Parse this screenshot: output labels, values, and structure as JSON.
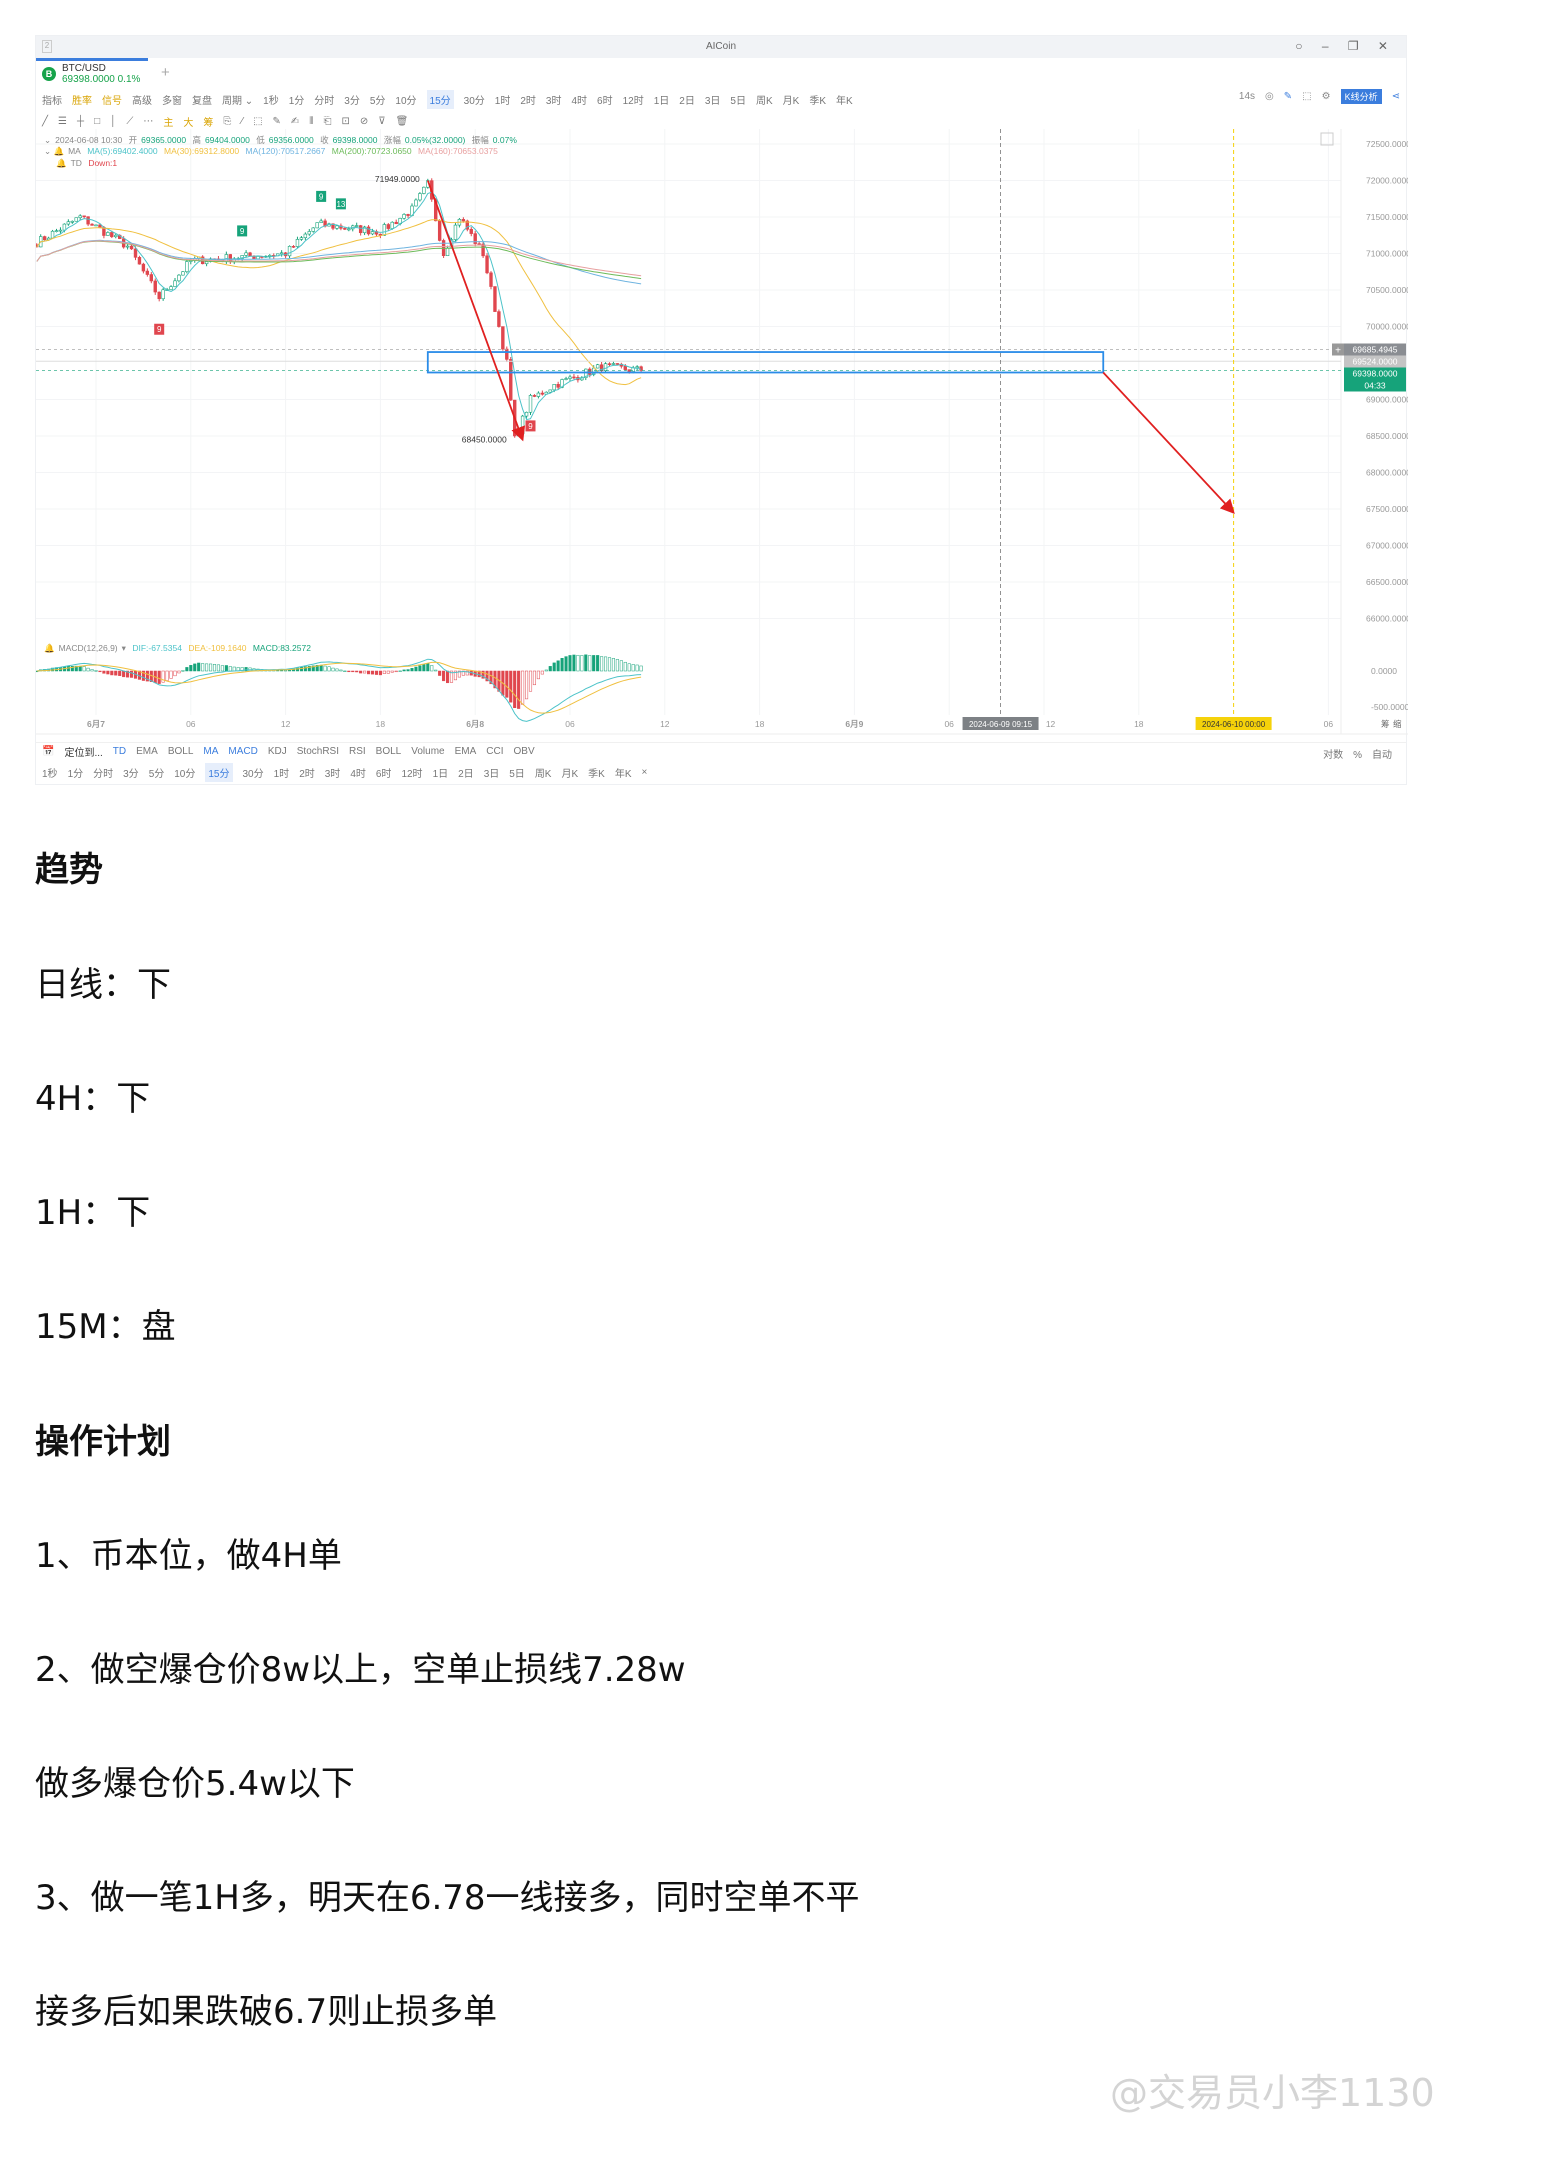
{
  "window": {
    "number": "2",
    "title": "AICoin",
    "controls": "○ – ❐ ✕"
  },
  "tab": {
    "symbol": "BTC/USD",
    "price": "69398.0000",
    "change": "0.1%",
    "logo": "B",
    "add": "+"
  },
  "toolbar1": {
    "items": [
      "指标",
      "胜率",
      "信号",
      "高级",
      "多窗",
      "复盘",
      "周期 ⌄"
    ],
    "periods": [
      "1秒",
      "1分",
      "分时",
      "3分",
      "5分",
      "10分",
      "15分",
      "30分",
      "1时",
      "2时",
      "3时",
      "4时",
      "6时",
      "12时",
      "1日",
      "2日",
      "3日",
      "5日",
      "周K",
      "月K",
      "季K",
      "年K"
    ],
    "active": "15分",
    "right": {
      "timer": "14s",
      "analysis": "K线分析"
    }
  },
  "toolbar2": {
    "items": [
      "╱",
      "☰",
      "┼",
      "□",
      "│",
      "⟋",
      "⋯",
      "主",
      "大",
      "筹",
      "⎘",
      "⁄",
      "⬚",
      "✎",
      "✍",
      "⫴",
      "⎗",
      "⊡",
      "⊘",
      "⊽",
      "🗑"
    ]
  },
  "info": {
    "ohlc": {
      "date": "2024-06-08 10:30",
      "open_label": "开",
      "open": "69365.0000",
      "high_label": "高",
      "high": "69404.0000",
      "low_label": "低",
      "low": "69356.0000",
      "close_label": "收",
      "close": "69398.0000",
      "chg_label": "涨幅",
      "chg": "0.05%(32.0000)",
      "amp_label": "振幅",
      "amp": "0.07%"
    },
    "ma": {
      "label": "MA",
      "ma5": "MA(5):69402.4000",
      "ma30": "MA(30):69312.8000",
      "ma120": "MA(120):70517.2667",
      "ma200": "MA(200):70723.0650",
      "ma160": "MA(160):70653.0375"
    },
    "td": {
      "label": "TD",
      "value": "Down:1"
    },
    "macd": {
      "label": "MACD(12,26,9)",
      "dif": "DIF:-67.5354",
      "dea": "DEA:-109.1640",
      "macd": "MACD:83.2572"
    }
  },
  "colors": {
    "up": "#16a37a",
    "down": "#e0464e",
    "ma5": "#4cc3c9",
    "ma30": "#f0c040",
    "ma120": "#6fb4e0",
    "ma200": "#6dbb5a",
    "ma160": "#e8a0a0",
    "box": "#2a8ce8",
    "arrow": "#e02020",
    "yellow": "#f5d20a"
  },
  "chart_data": {
    "type": "candlestick",
    "interval": "15分",
    "close_anchors": [
      [
        "2024-06-06 20:15",
        71150
      ],
      [
        "2024-06-06 23:00",
        71500
      ],
      [
        "2024-06-07 02:00",
        71100
      ],
      [
        "2024-06-07 04:00",
        70400
      ],
      [
        "2024-06-07 06:00",
        70900
      ],
      [
        "2024-06-07 12:00",
        71000
      ],
      [
        "2024-06-07 14:00",
        71400
      ],
      [
        "2024-06-07 18:00",
        71300
      ],
      [
        "2024-06-07 20:00",
        71600
      ],
      [
        "2024-06-07 21:00",
        71949
      ],
      [
        "2024-06-07 22:00",
        71000
      ],
      [
        "2024-06-07 23:00",
        71500
      ],
      [
        "2024-06-08 00:30",
        71000
      ],
      [
        "2024-06-08 02:00",
        69500
      ],
      [
        "2024-06-08 02:30",
        68450
      ],
      [
        "2024-06-08 03:30",
        69000
      ],
      [
        "2024-06-08 05:00",
        69200
      ],
      [
        "2024-06-08 08:00",
        69450
      ],
      [
        "2024-06-08 10:30",
        69398
      ]
    ],
    "high_label": "71949.0000",
    "low_label": "68450.0000",
    "y_ticks": [
      "72500.0000",
      "72000.0000",
      "71500.0000",
      "71000.0000",
      "70500.0000",
      "70000.0000",
      "69000.0000",
      "68500.0000",
      "68000.0000",
      "67500.0000",
      "67000.0000",
      "66500.0000",
      "66000.0000"
    ],
    "y_range": [
      66000,
      72500
    ],
    "macd_ticks": [
      "0.0000",
      "-500.0000"
    ],
    "price_tags": {
      "crosshair": "69685.4945",
      "level": "69524.0000",
      "last": "69398.0000",
      "countdown": "04:33",
      "crosshair_plus": "+"
    },
    "x_ticks": [
      [
        "6月7",
        "2024-06-07 00:00"
      ],
      [
        "06",
        "2024-06-07 06:00"
      ],
      [
        "12",
        "2024-06-07 12:00"
      ],
      [
        "18",
        "2024-06-07 18:00"
      ],
      [
        "6月8",
        "2024-06-08 00:00"
      ],
      [
        "06",
        "2024-06-08 06:00"
      ],
      [
        "12",
        "2024-06-08 12:00"
      ],
      [
        "18",
        "2024-06-08 18:00"
      ],
      [
        "6月9",
        "2024-06-09 00:00"
      ],
      [
        "06",
        "2024-06-09 06:00"
      ],
      [
        "12",
        "2024-06-09 12:00"
      ],
      [
        "18",
        "2024-06-09 18:00"
      ],
      [
        "06",
        "2024-06-10 06:00"
      ]
    ],
    "cursor_time": "2024-06-09 09:15",
    "marker_time": "2024-06-10 00:00",
    "box": {
      "from": "2024-06-07 21:00",
      "to": "2024-06-09 15:45",
      "top": 69650,
      "bottom": 69370
    },
    "arrows": [
      {
        "from": [
          "2024-06-07 21:00",
          72000
        ],
        "to": [
          "2024-06-08 03:00",
          68450
        ]
      },
      {
        "from": [
          "2024-06-09 15:45",
          69370
        ],
        "to": [
          "2024-06-10 00:00",
          67450
        ]
      }
    ],
    "td_markers": [
      [
        "2024-06-07 04:00",
        "9",
        "down"
      ],
      [
        "2024-06-07 09:15",
        "9",
        "up"
      ],
      [
        "2024-06-07 14:15",
        "9",
        "up"
      ],
      [
        "2024-06-07 15:30",
        "13",
        "up"
      ],
      [
        "2024-06-08 03:30",
        "9",
        "down"
      ]
    ],
    "axis_right_labels": [
      "筹",
      "缩"
    ]
  },
  "indicator_bar": {
    "locate": "定位到...",
    "main": [
      "TD",
      "EMA",
      "BOLL",
      "MA"
    ],
    "sub": [
      "MACD",
      "KDJ",
      "StochRSI",
      "RSI",
      "BOLL",
      "Volume",
      "EMA",
      "CCI",
      "OBV"
    ],
    "right": [
      "对数",
      "%",
      "自动"
    ]
  },
  "period_bar": {
    "periods": [
      "1秒",
      "1分",
      "分时",
      "3分",
      "5分",
      "10分",
      "15分",
      "30分",
      "1时",
      "2时",
      "3时",
      "4时",
      "6时",
      "12时",
      "1日",
      "2日",
      "3日",
      "5日",
      "周K",
      "月K",
      "季K",
      "年K"
    ],
    "active": "15分",
    "close": "×"
  },
  "article": {
    "h1": "趋势",
    "trend": [
      "日线：下",
      "4H：下",
      "1H：下",
      "15M：盘"
    ],
    "h2": "操作计划",
    "plan": [
      "1、币本位，做4H单",
      "2、做空爆仓价8w以上，空单止损线7.28w",
      "做多爆仓价5.4w以下",
      "3、做一笔1H多，明天在6.78一线接多，同时空单不平",
      "接多后如果跌破6.7则止损多单"
    ]
  },
  "watermark": "@交易员小李1130"
}
